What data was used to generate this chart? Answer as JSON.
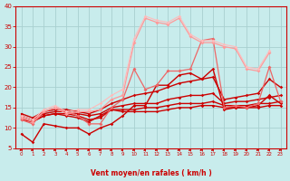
{
  "xlabel": "Vent moyen/en rafales ( km/h )",
  "bg_color": "#c8ecec",
  "grid_color": "#a8d0d0",
  "axis_color": "#cc0000",
  "text_color": "#cc0000",
  "xlim": [
    -0.5,
    23.5
  ],
  "ylim": [
    5,
    40
  ],
  "yticks": [
    5,
    10,
    15,
    20,
    25,
    30,
    35,
    40
  ],
  "xticks": [
    0,
    1,
    2,
    3,
    4,
    5,
    6,
    7,
    8,
    9,
    10,
    11,
    12,
    13,
    14,
    15,
    16,
    17,
    18,
    19,
    20,
    21,
    22,
    23
  ],
  "series": [
    {
      "x": [
        0,
        1,
        2,
        3,
        4,
        5,
        6,
        7,
        8,
        9,
        10,
        11,
        12,
        13,
        14,
        15,
        16,
        17,
        18,
        19,
        20,
        21,
        22,
        23
      ],
      "y": [
        8.5,
        6.5,
        11,
        10.5,
        10,
        10,
        8.5,
        10,
        11,
        13,
        15.5,
        15.5,
        20.5,
        20.5,
        23,
        23.5,
        22,
        24.5,
        14.5,
        15,
        15,
        15.5,
        18,
        16
      ],
      "color": "#cc0000",
      "lw": 1.0,
      "marker": "D",
      "ms": 1.8,
      "alpha": 1.0
    },
    {
      "x": [
        0,
        1,
        2,
        3,
        4,
        5,
        6,
        7,
        8,
        9,
        10,
        11,
        12,
        13,
        14,
        15,
        16,
        17,
        18,
        19,
        20,
        21,
        22,
        23
      ],
      "y": [
        12,
        11.5,
        13,
        13.5,
        13,
        12.5,
        11.5,
        13,
        14.5,
        14,
        14,
        14,
        14,
        14.5,
        15,
        15,
        15.5,
        15.5,
        15,
        15,
        15,
        15,
        15.5,
        15.5
      ],
      "color": "#cc0000",
      "lw": 1.0,
      "marker": "D",
      "ms": 1.8,
      "alpha": 1.0
    },
    {
      "x": [
        0,
        1,
        2,
        3,
        4,
        5,
        6,
        7,
        8,
        9,
        10,
        11,
        12,
        13,
        14,
        15,
        16,
        17,
        18,
        19,
        20,
        21,
        22,
        23
      ],
      "y": [
        12.5,
        11.5,
        13,
        13.5,
        13.5,
        13,
        12,
        12.5,
        14.5,
        14.5,
        14.5,
        15,
        15,
        15.5,
        16,
        16,
        16,
        16.5,
        15.5,
        15.5,
        15.5,
        16,
        16,
        16.5
      ],
      "color": "#cc0000",
      "lw": 1.0,
      "marker": "D",
      "ms": 1.8,
      "alpha": 1.0
    },
    {
      "x": [
        0,
        1,
        2,
        3,
        4,
        5,
        6,
        7,
        8,
        9,
        10,
        11,
        12,
        13,
        14,
        15,
        16,
        17,
        18,
        19,
        20,
        21,
        22,
        23
      ],
      "y": [
        13,
        12,
        13.5,
        14,
        14,
        13.5,
        13,
        13.5,
        15,
        15.5,
        16,
        16,
        16,
        17,
        17.5,
        18,
        18,
        18.5,
        16,
        16.5,
        16.5,
        17,
        17.5,
        18
      ],
      "color": "#cc0000",
      "lw": 1.0,
      "marker": "D",
      "ms": 1.8,
      "alpha": 1.0
    },
    {
      "x": [
        0,
        1,
        2,
        3,
        4,
        5,
        6,
        7,
        8,
        9,
        10,
        11,
        12,
        13,
        14,
        15,
        16,
        17,
        18,
        19,
        20,
        21,
        22,
        23
      ],
      "y": [
        13.5,
        12.5,
        14,
        14.5,
        14.5,
        14,
        13.5,
        14.5,
        16,
        17,
        18,
        18.5,
        19,
        20,
        21,
        21.5,
        22,
        22.5,
        17,
        17.5,
        18,
        18.5,
        22,
        20
      ],
      "color": "#cc0000",
      "lw": 1.0,
      "marker": "D",
      "ms": 1.8,
      "alpha": 1.0
    },
    {
      "x": [
        0,
        1,
        2,
        3,
        4,
        5,
        6,
        7,
        8,
        9,
        10,
        11,
        12,
        13,
        14,
        15,
        16,
        17,
        18,
        19,
        20,
        21,
        22,
        23
      ],
      "y": [
        12,
        11,
        14,
        15,
        14,
        13,
        11,
        11,
        15,
        17,
        24.5,
        19.5,
        20.5,
        24,
        24,
        24.5,
        31.5,
        32,
        15,
        15.5,
        15,
        16,
        25,
        16.5
      ],
      "color": "#ee6666",
      "lw": 0.9,
      "marker": "D",
      "ms": 2.0,
      "alpha": 1.0
    },
    {
      "x": [
        0,
        1,
        2,
        3,
        4,
        5,
        6,
        7,
        8,
        9,
        10,
        11,
        12,
        13,
        14,
        15,
        16,
        17,
        18,
        19,
        20,
        21,
        22,
        23
      ],
      "y": [
        12.5,
        11.5,
        14,
        15,
        13.5,
        14,
        14,
        14.5,
        17,
        18,
        31,
        37,
        36,
        35.5,
        37,
        32.5,
        31,
        31,
        30,
        29.5,
        24.5,
        24,
        28.5,
        null
      ],
      "color": "#ff9999",
      "lw": 0.9,
      "marker": "D",
      "ms": 2.0,
      "alpha": 1.0
    },
    {
      "x": [
        0,
        1,
        2,
        3,
        4,
        5,
        6,
        7,
        8,
        9,
        10,
        11,
        12,
        13,
        14,
        15,
        16,
        17,
        18,
        19,
        20,
        21,
        22,
        23
      ],
      "y": [
        13,
        12,
        14.5,
        15.5,
        14,
        14.5,
        14.5,
        16,
        18,
        19.5,
        32,
        37.5,
        36.5,
        36,
        37.5,
        33,
        31.5,
        31.5,
        30.5,
        30,
        25,
        24.5,
        29,
        null
      ],
      "color": "#ffbbbb",
      "lw": 0.8,
      "marker": "D",
      "ms": 1.8,
      "alpha": 1.0
    }
  ]
}
